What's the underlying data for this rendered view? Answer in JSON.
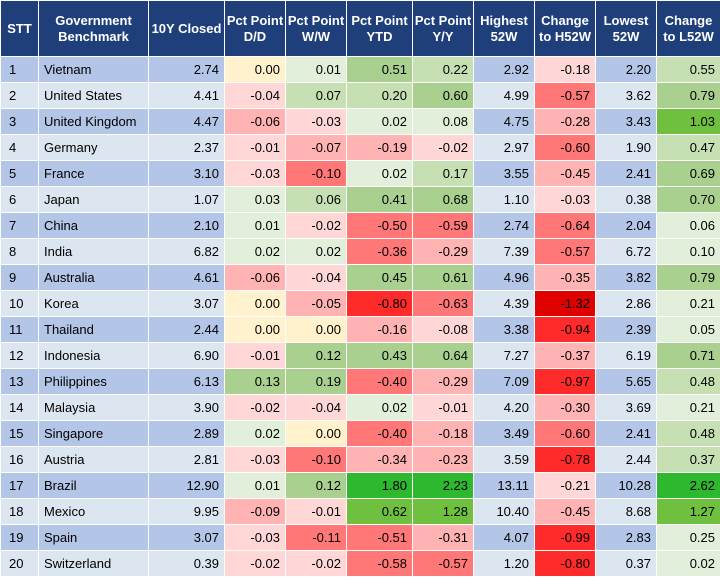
{
  "headers": [
    "STT",
    "Government Benchmark",
    "10Y Closed",
    "Pct Point D/D",
    "Pct Point W/W",
    "Pct Point YTD",
    "Pct Point Y/Y",
    "Highest 52W",
    "Change to H52W",
    "Lowest 52W",
    "Change to L52W"
  ],
  "rows": [
    [
      "1",
      "Vietnam",
      "2.74",
      "0.00",
      "0.01",
      "0.51",
      "0.22",
      "2.92",
      "-0.18",
      "2.20",
      "0.55"
    ],
    [
      "2",
      "United States",
      "4.41",
      "-0.04",
      "0.07",
      "0.20",
      "0.60",
      "4.99",
      "-0.57",
      "3.62",
      "0.79"
    ],
    [
      "3",
      "United Kingdom",
      "4.47",
      "-0.06",
      "-0.03",
      "0.02",
      "0.08",
      "4.75",
      "-0.28",
      "3.43",
      "1.03"
    ],
    [
      "4",
      "Germany",
      "2.37",
      "-0.01",
      "-0.07",
      "-0.19",
      "-0.02",
      "2.97",
      "-0.60",
      "1.90",
      "0.47"
    ],
    [
      "5",
      "France",
      "3.10",
      "-0.03",
      "-0.10",
      "0.02",
      "0.17",
      "3.55",
      "-0.45",
      "2.41",
      "0.69"
    ],
    [
      "6",
      "Japan",
      "1.07",
      "0.03",
      "0.06",
      "0.41",
      "0.68",
      "1.10",
      "-0.03",
      "0.38",
      "0.70"
    ],
    [
      "7",
      "China",
      "2.10",
      "0.01",
      "-0.02",
      "-0.50",
      "-0.59",
      "2.74",
      "-0.64",
      "2.04",
      "0.06"
    ],
    [
      "8",
      "India",
      "6.82",
      "0.02",
      "0.02",
      "-0.36",
      "-0.29",
      "7.39",
      "-0.57",
      "6.72",
      "0.10"
    ],
    [
      "9",
      "Australia",
      "4.61",
      "-0.06",
      "-0.04",
      "0.45",
      "0.61",
      "4.96",
      "-0.35",
      "3.82",
      "0.79"
    ],
    [
      "10",
      "Korea",
      "3.07",
      "0.00",
      "-0.05",
      "-0.80",
      "-0.63",
      "4.39",
      "-1.32",
      "2.86",
      "0.21"
    ],
    [
      "11",
      "Thailand",
      "2.44",
      "0.00",
      "0.00",
      "-0.16",
      "-0.08",
      "3.38",
      "-0.94",
      "2.39",
      "0.05"
    ],
    [
      "12",
      "Indonesia",
      "6.90",
      "-0.01",
      "0.12",
      "0.43",
      "0.64",
      "7.27",
      "-0.37",
      "6.19",
      "0.71"
    ],
    [
      "13",
      "Philippines",
      "6.13",
      "0.13",
      "0.19",
      "-0.40",
      "-0.29",
      "7.09",
      "-0.97",
      "5.65",
      "0.48"
    ],
    [
      "14",
      "Malaysia",
      "3.90",
      "-0.02",
      "-0.04",
      "0.02",
      "-0.01",
      "4.20",
      "-0.30",
      "3.69",
      "0.21"
    ],
    [
      "15",
      "Singapore",
      "2.89",
      "0.02",
      "0.00",
      "-0.40",
      "-0.18",
      "3.49",
      "-0.60",
      "2.41",
      "0.48"
    ],
    [
      "16",
      "Austria",
      "2.81",
      "-0.03",
      "-0.10",
      "-0.34",
      "-0.23",
      "3.59",
      "-0.78",
      "2.44",
      "0.37"
    ],
    [
      "17",
      "Brazil",
      "12.90",
      "0.01",
      "0.12",
      "1.80",
      "2.23",
      "13.11",
      "-0.21",
      "10.28",
      "2.62"
    ],
    [
      "18",
      "Mexico",
      "9.95",
      "-0.09",
      "-0.01",
      "0.62",
      "1.28",
      "10.40",
      "-0.45",
      "8.68",
      "1.27"
    ],
    [
      "19",
      "Spain",
      "3.07",
      "-0.03",
      "-0.11",
      "-0.51",
      "-0.31",
      "4.07",
      "-0.99",
      "2.83",
      "0.25"
    ],
    [
      "20",
      "Switzerland",
      "0.39",
      "-0.02",
      "-0.02",
      "-0.58",
      "-0.57",
      "1.20",
      "-0.80",
      "0.37",
      "0.02"
    ]
  ],
  "colors": {
    "header_bg": "#1f3f7a",
    "row_odd": "#b4c6e7",
    "row_even": "#dce6f1",
    "zero": "#fff2cc",
    "pos_1": "#e2efda",
    "pos_2": "#c6e0b4",
    "pos_3": "#a9d08e",
    "pos_4": "#70c040",
    "pos_5": "#2eb82e",
    "neg_1": "#ffd7d7",
    "neg_2": "#ffb3b3",
    "neg_3": "#ff7777",
    "neg_4": "#ff2a2a",
    "neg_5": "#e00000"
  }
}
